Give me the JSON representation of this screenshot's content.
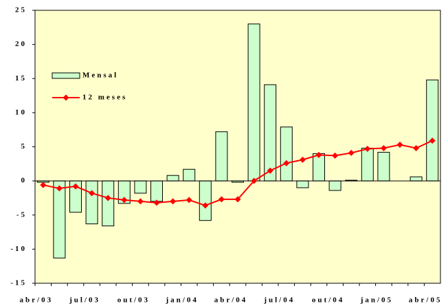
{
  "chart_data": {
    "type": "bar_line",
    "categories": [
      "abr/03",
      null,
      null,
      "jul/03",
      null,
      null,
      "out/03",
      null,
      null,
      "jan/04",
      null,
      null,
      "abr/04",
      null,
      null,
      "jul/04",
      null,
      null,
      "out/04",
      null,
      null,
      "jan/05",
      null,
      null,
      "abr/05"
    ],
    "series": [
      {
        "name": "Mensal",
        "type": "bar",
        "color": "#ccffcc",
        "values": [
          -0.2,
          -11.3,
          -4.6,
          -6.3,
          -6.6,
          -3.3,
          -1.8,
          -3.0,
          0.8,
          1.7,
          -5.8,
          7.2,
          -0.2,
          23.0,
          14.1,
          7.9,
          -1.0,
          4.0,
          -1.4,
          0.1,
          4.8,
          4.2,
          0,
          0.6,
          14.8
        ]
      },
      {
        "name": "12 meses",
        "type": "line",
        "color": "#ff0000",
        "values": [
          -0.6,
          -1.1,
          -0.8,
          -1.8,
          -2.5,
          -2.8,
          -3.0,
          -3.2,
          -3.0,
          -2.8,
          -3.6,
          -2.7,
          -2.7,
          0.0,
          1.5,
          2.6,
          3.1,
          3.8,
          3.7,
          4.1,
          4.7,
          4.8,
          5.3,
          4.8,
          5.9
        ]
      }
    ],
    "ylim": [
      -15,
      25
    ],
    "yticks": [
      -15,
      -10,
      -5,
      0,
      5,
      10,
      15,
      20,
      25
    ],
    "legend": "upper left",
    "background": "#ffffcc"
  }
}
